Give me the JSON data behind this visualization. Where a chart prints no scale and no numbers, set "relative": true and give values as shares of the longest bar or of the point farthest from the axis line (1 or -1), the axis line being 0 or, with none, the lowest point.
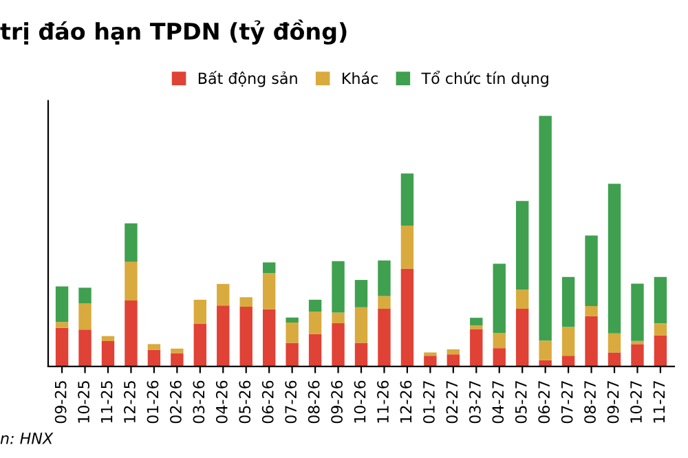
{
  "chart_data": {
    "type": "bar",
    "title": "trị đáo hạn TPDN (tỷ đồng)",
    "stacked": true,
    "relative": true,
    "legend": "top",
    "grid": false,
    "categories": [
      "09-25",
      "10-25",
      "11-25",
      "12-25",
      "01-26",
      "02-26",
      "03-26",
      "04-26",
      "05-26",
      "06-26",
      "07-26",
      "08-26",
      "09-26",
      "10-26",
      "11-26",
      "12-26",
      "01-27",
      "02-27",
      "03-27",
      "04-27",
      "05-27",
      "06-27",
      "07-27",
      "08-27",
      "09-27",
      "10-27",
      "11-27"
    ],
    "series": [
      {
        "name": "Bất động sản",
        "color": "#e04236",
        "values": [
          0.154,
          0.147,
          0.101,
          0.263,
          0.066,
          0.053,
          0.17,
          0.243,
          0.238,
          0.228,
          0.094,
          0.129,
          0.172,
          0.094,
          0.23,
          0.39,
          0.043,
          0.048,
          0.149,
          0.073,
          0.23,
          0.025,
          0.043,
          0.2,
          0.056,
          0.089,
          0.124
        ]
      },
      {
        "name": "Khác",
        "color": "#d9aa3e",
        "values": [
          0.023,
          0.104,
          0.02,
          0.154,
          0.023,
          0.018,
          0.096,
          0.086,
          0.038,
          0.144,
          0.081,
          0.089,
          0.043,
          0.142,
          0.051,
          0.172,
          0.013,
          0.02,
          0.015,
          0.061,
          0.076,
          0.078,
          0.114,
          0.041,
          0.076,
          0.013,
          0.048
        ]
      },
      {
        "name": "Tổ chức tín dụng",
        "color": "#3fa04f",
        "values": [
          0.142,
          0.063,
          0,
          0.154,
          0,
          0,
          0,
          0,
          0,
          0.043,
          0.02,
          0.048,
          0.205,
          0.109,
          0.142,
          0.208,
          0,
          0,
          0.03,
          0.276,
          0.354,
          0.897,
          0.2,
          0.281,
          0.597,
          0.228,
          0.185
        ]
      }
    ],
    "annotations": [
      "n: HNX"
    ]
  }
}
